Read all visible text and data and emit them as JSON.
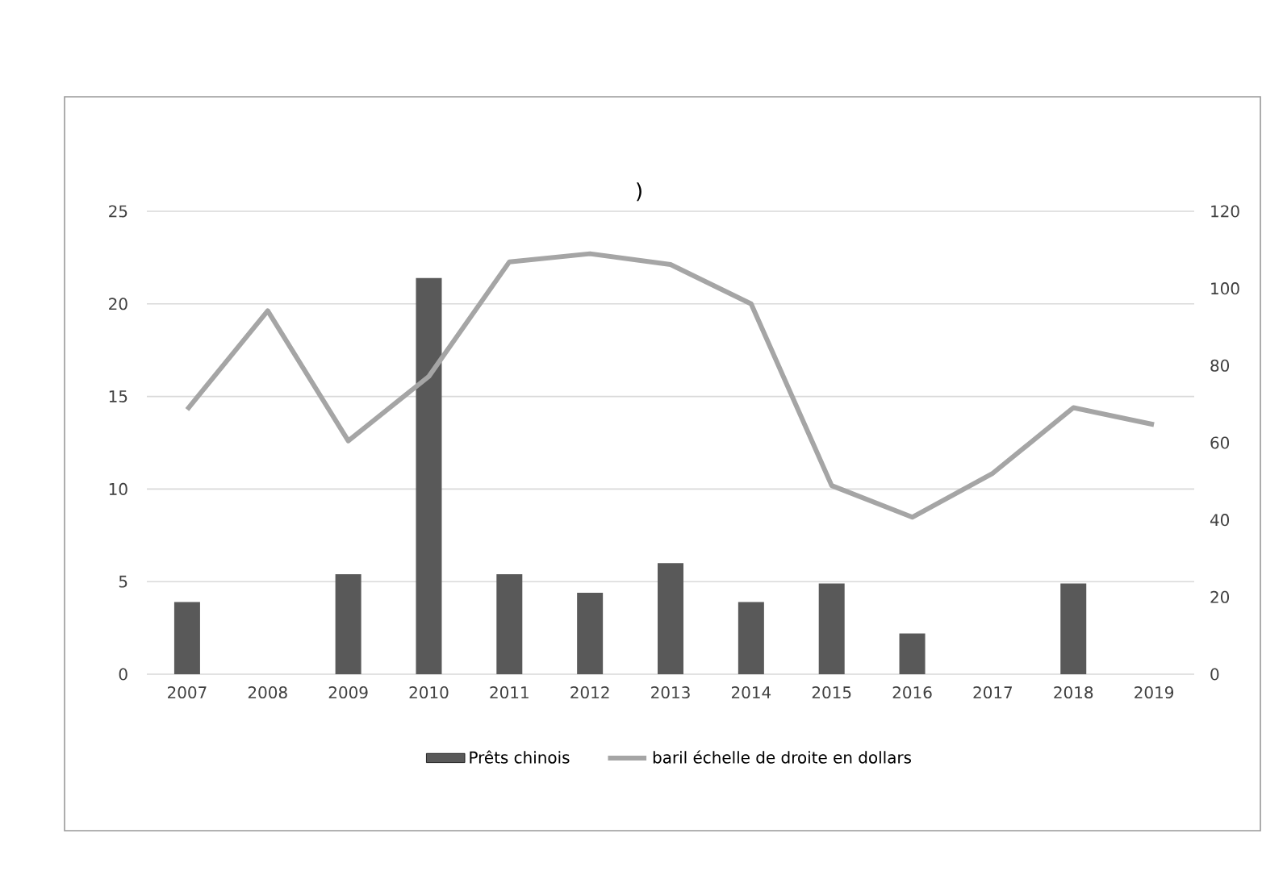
{
  "chart_data": {
    "type": "bar",
    "categories": [
      "2007",
      "2008",
      "2009",
      "2010",
      "2011",
      "2012",
      "2013",
      "2014",
      "2015",
      "2016",
      "2017",
      "2018",
      "2019"
    ],
    "series": [
      {
        "name": "Prêts chinois",
        "color": "#595959",
        "values": [
          3.9,
          null,
          5.4,
          21.4,
          5.4,
          4.4,
          6.0,
          3.9,
          4.9,
          2.2,
          null,
          4.9,
          null
        ]
      },
      {
        "name": "baril échelle de droite en dollars",
        "type": "line",
        "axis": "y2",
        "color": "#a5a5a5",
        "values": [
          68.6,
          94.2,
          60.5,
          77.2,
          106.9,
          109,
          106.2,
          96,
          48.9,
          40.7,
          52.1,
          69.1,
          64.7
        ]
      }
    ],
    "ylim": [
      0,
      25
    ],
    "yticks": [
      0,
      5,
      10,
      15,
      20,
      25
    ],
    "y2lim": [
      0,
      120
    ],
    "y2ticks": [
      0,
      20,
      40,
      60,
      80,
      100,
      120
    ],
    "grid": "y",
    "legend": "bottom",
    "marker": "none",
    "line_style": "solid",
    "annotations": [
      ")"
    ]
  }
}
